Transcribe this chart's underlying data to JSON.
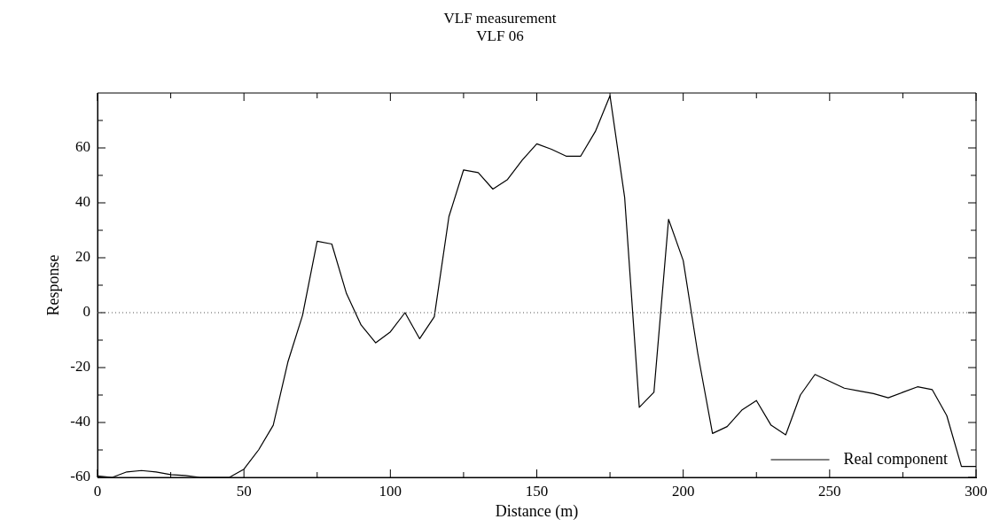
{
  "chart_data": {
    "type": "line",
    "title": "VLF measurement",
    "subtitle": "VLF 06",
    "xlabel": "Distance (m)",
    "ylabel": "Response",
    "x": [
      0,
      5,
      10,
      15,
      20,
      25,
      30,
      35,
      40,
      45,
      50,
      55,
      60,
      65,
      70,
      75,
      80,
      85,
      90,
      95,
      100,
      105,
      110,
      115,
      120,
      125,
      130,
      135,
      140,
      145,
      150,
      155,
      160,
      165,
      170,
      175,
      180,
      185,
      190,
      195,
      200,
      205,
      210,
      215,
      220,
      225,
      230,
      235,
      240,
      245,
      250,
      255,
      260,
      265,
      270,
      275,
      280,
      285,
      290,
      295,
      300
    ],
    "series": [
      {
        "name": "Real component",
        "color": "#000000",
        "values": [
          -59.5,
          -60,
          -58,
          -57.5,
          -58,
          -59,
          -59.3,
          -60,
          -60,
          -60,
          -57,
          -50,
          -41,
          -18,
          -1,
          26,
          25,
          7,
          -4.5,
          -11,
          -7,
          0,
          -9.5,
          -1.5,
          35,
          52,
          51,
          45,
          48.5,
          55.5,
          61.5,
          59.5,
          57,
          57,
          66,
          79,
          42,
          -34.5,
          -29,
          34,
          19,
          -15,
          -44,
          -41.5,
          -35.5,
          -32,
          -41,
          -44.5,
          -30,
          -22.5,
          -25,
          -27.5,
          -28.5,
          -29.5,
          -31,
          -29,
          -27,
          -28,
          -37.5,
          -56,
          -56
        ]
      }
    ],
    "xlim": [
      0,
      300
    ],
    "ylim": [
      -60,
      80
    ],
    "xticks": [
      0,
      {
        "value": 25,
        "label": null
      },
      50,
      {
        "value": 75,
        "label": null
      },
      100,
      {
        "value": 125,
        "label": null
      },
      150,
      {
        "value": 175,
        "label": null
      },
      200,
      {
        "value": 225,
        "label": null
      },
      250,
      {
        "value": 275,
        "label": null
      },
      300
    ],
    "yticks": [
      -60,
      {
        "value": -50,
        "label": null
      },
      -40,
      {
        "value": -30,
        "label": null
      },
      -20,
      {
        "value": -10,
        "label": null
      },
      0,
      {
        "value": 10,
        "label": null
      },
      20,
      {
        "value": 30,
        "label": null
      },
      40,
      {
        "value": 50,
        "label": null
      },
      60,
      {
        "value": 70,
        "label": null
      }
    ],
    "ref_lines": [
      {
        "axis": "y",
        "value": 0,
        "line_style": "dotted",
        "color": "#555555"
      }
    ],
    "legend": "bottom right",
    "marker": "none",
    "line_style": "solid"
  }
}
